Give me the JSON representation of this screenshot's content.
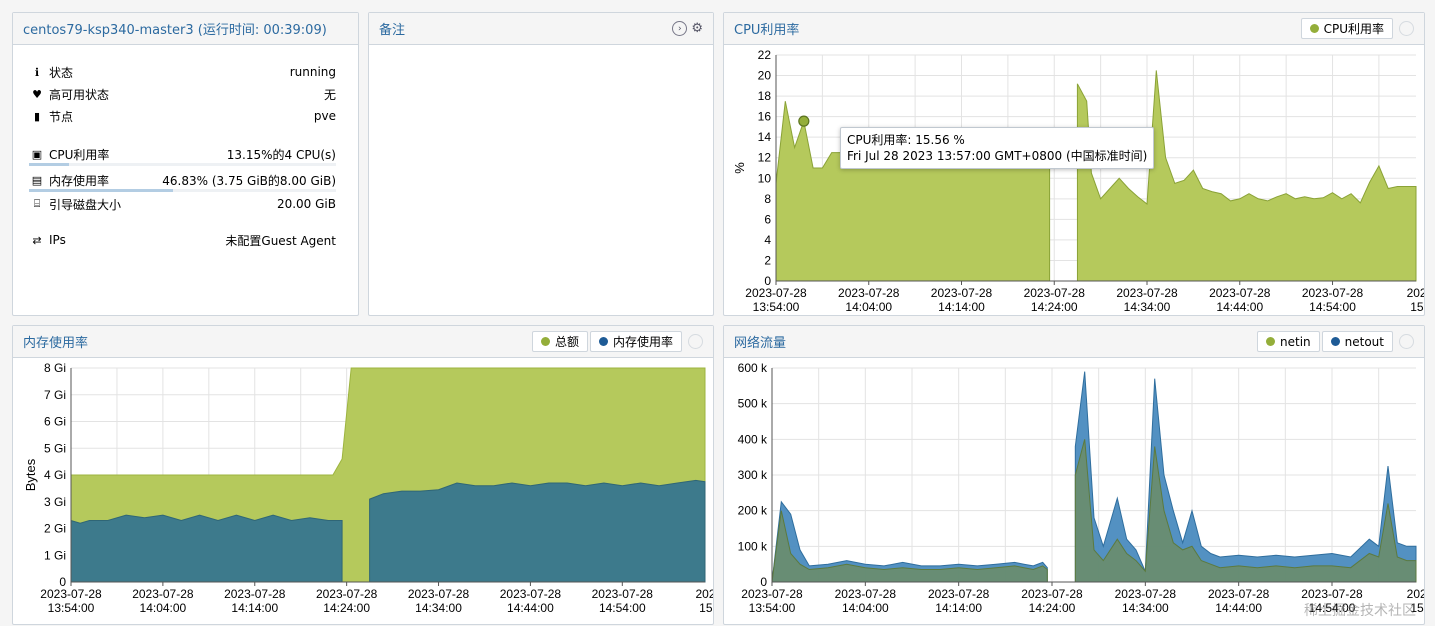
{
  "status_panel": {
    "title": "centos79-ksp340-master3 (运行时间: 00:39:09)",
    "rows": [
      {
        "label": "状态",
        "value": "running"
      },
      {
        "label": "高可用状态",
        "value": "无"
      },
      {
        "label": "节点",
        "value": "pve"
      }
    ],
    "metrics": [
      {
        "label": "CPU利用率",
        "value": "13.15%的4 CPU(s)",
        "fraction": 0.1315
      },
      {
        "label": "内存使用率",
        "value": "46.83% (3.75 GiB的8.00 GiB)",
        "fraction": 0.4683
      },
      {
        "label": "引导磁盘大小",
        "value": "20.00 GiB"
      }
    ],
    "ips": {
      "label": "IPs",
      "value": "未配置Guest Agent"
    }
  },
  "notes_panel": {
    "title": "备注"
  },
  "cpu_panel": {
    "title": "CPU利用率",
    "legend": [
      "CPU利用率"
    ],
    "tooltip": {
      "line1": "CPU利用率: 15.56 %",
      "line2": "Fri Jul 28 2023 13:57:00 GMT+0800 (中国标准时间)"
    }
  },
  "mem_panel": {
    "title": "内存使用率",
    "legend": [
      "总额",
      "内存使用率"
    ]
  },
  "net_panel": {
    "title": "网络流量",
    "legend": [
      "netin",
      "netout"
    ]
  },
  "colors": {
    "total": "#b5c95c",
    "used": "#3d7a8c",
    "netin": "#94ae3a",
    "netout": "#4a8bbf",
    "accent": "#2c6aa0"
  },
  "watermark": "稀土掘金技术社区",
  "chart_data": [
    {
      "type": "area",
      "title": "CPU利用率",
      "ylabel": "%",
      "ylim": [
        0,
        22
      ],
      "yticks": [
        "0",
        "2",
        "4",
        "6",
        "8",
        "10",
        "12",
        "14",
        "16",
        "18",
        "20",
        "22"
      ],
      "xticks": [
        "2023-07-28\n13:54:00",
        "2023-07-28\n14:04:00",
        "2023-07-28\n14:14:00",
        "2023-07-28\n14:24:00",
        "2023-07-28\n14:34:00",
        "2023-07-28\n14:44:00",
        "2023-07-28\n14:54:00",
        "2023-0\n15:03"
      ],
      "xlim_minutes": [
        0,
        69
      ],
      "series": [
        {
          "name": "CPU利用率",
          "segments": [
            [
              [
                0,
                9.5
              ],
              [
                1,
                17.5
              ],
              [
                2,
                13
              ],
              [
                3,
                15.56
              ],
              [
                4,
                11
              ],
              [
                5,
                11
              ],
              [
                6,
                12.5
              ],
              [
                7,
                12.5
              ],
              [
                8,
                12
              ],
              [
                9,
                12
              ],
              [
                10,
                11.5
              ],
              [
                12,
                11.5
              ],
              [
                15,
                11.5
              ],
              [
                18,
                11.5
              ],
              [
                21,
                11.5
              ],
              [
                24,
                11.5
              ],
              [
                27,
                11.5
              ],
              [
                29.5,
                11.5
              ]
            ],
            [
              [
                32.5,
                19.2
              ],
              [
                33.5,
                17.5
              ],
              [
                34,
                10.5
              ],
              [
                35,
                8
              ],
              [
                36,
                9
              ],
              [
                37,
                10
              ],
              [
                38,
                9
              ],
              [
                39,
                8.2
              ],
              [
                40,
                7.5
              ],
              [
                41,
                20.5
              ],
              [
                42,
                12
              ],
              [
                43,
                9.5
              ],
              [
                44,
                9.8
              ],
              [
                45,
                10.8
              ],
              [
                46,
                9
              ],
              [
                47,
                8.7
              ],
              [
                48,
                8.5
              ],
              [
                49,
                7.8
              ],
              [
                50,
                8
              ],
              [
                51,
                8.5
              ],
              [
                52,
                8
              ],
              [
                53,
                7.8
              ],
              [
                54,
                8.2
              ],
              [
                55,
                8.5
              ],
              [
                56,
                8
              ],
              [
                57,
                8.2
              ],
              [
                58,
                8
              ],
              [
                59,
                8.1
              ],
              [
                60,
                8.6
              ],
              [
                61,
                8
              ],
              [
                62,
                8.5
              ],
              [
                63,
                7.6
              ],
              [
                64,
                9.6
              ],
              [
                65,
                11.2
              ],
              [
                66,
                9
              ],
              [
                67,
                9.2
              ],
              [
                69,
                9.2
              ]
            ]
          ]
        }
      ]
    },
    {
      "type": "area",
      "title": "内存使用率",
      "ylabel": "Bytes",
      "ylim": [
        0,
        8
      ],
      "yticks": [
        "0",
        "1 Gi",
        "2 Gi",
        "3 Gi",
        "4 Gi",
        "5 Gi",
        "6 Gi",
        "7 Gi",
        "8 Gi"
      ],
      "xticks": [
        "2023-07-28\n13:54:00",
        "2023-07-28\n14:04:00",
        "2023-07-28\n14:14:00",
        "2023-07-28\n14:24:00",
        "2023-07-28\n14:34:00",
        "2023-07-28\n14:44:00",
        "2023-07-28\n14:54:00",
        "2023-0\n15:03"
      ],
      "xlim_minutes": [
        0,
        69
      ],
      "series": [
        {
          "name": "总额",
          "points": [
            [
              0,
              4
            ],
            [
              28.5,
              4
            ],
            [
              29.5,
              4.6
            ],
            [
              30.5,
              8
            ],
            [
              69,
              8
            ]
          ]
        },
        {
          "name": "内存使用率",
          "segments": [
            [
              [
                0,
                2.3
              ],
              [
                1,
                2.2
              ],
              [
                2,
                2.3
              ],
              [
                4,
                2.3
              ],
              [
                6,
                2.5
              ],
              [
                8,
                2.4
              ],
              [
                10,
                2.5
              ],
              [
                12,
                2.3
              ],
              [
                14,
                2.5
              ],
              [
                16,
                2.3
              ],
              [
                18,
                2.5
              ],
              [
                20,
                2.3
              ],
              [
                22,
                2.5
              ],
              [
                24,
                2.3
              ],
              [
                26,
                2.4
              ],
              [
                28,
                2.3
              ],
              [
                29.5,
                2.3
              ]
            ],
            [
              [
                32.5,
                3.1
              ],
              [
                34,
                3.3
              ],
              [
                36,
                3.4
              ],
              [
                38,
                3.4
              ],
              [
                40,
                3.45
              ],
              [
                42,
                3.7
              ],
              [
                44,
                3.6
              ],
              [
                46,
                3.6
              ],
              [
                48,
                3.7
              ],
              [
                50,
                3.6
              ],
              [
                52,
                3.7
              ],
              [
                54,
                3.7
              ],
              [
                56,
                3.6
              ],
              [
                58,
                3.7
              ],
              [
                60,
                3.6
              ],
              [
                62,
                3.7
              ],
              [
                64,
                3.6
              ],
              [
                66,
                3.7
              ],
              [
                68,
                3.8
              ],
              [
                69,
                3.75
              ]
            ]
          ]
        }
      ]
    },
    {
      "type": "area",
      "title": "网络流量",
      "ylim": [
        0,
        600000
      ],
      "yticks": [
        "0",
        "100 k",
        "200 k",
        "300 k",
        "400 k",
        "500 k",
        "600 k"
      ],
      "xticks": [
        "2023-07-28\n13:54:00",
        "2023-07-28\n14:04:00",
        "2023-07-28\n14:14:00",
        "2023-07-28\n14:24:00",
        "2023-07-28\n14:34:00",
        "2023-07-28\n14:44:00",
        "2023-07-28\n14:54:00",
        "2023-0\n15:03"
      ],
      "xlim_minutes": [
        0,
        69
      ],
      "series": [
        {
          "name": "netout",
          "segments": [
            [
              [
                0,
                0
              ],
              [
                1,
                225000
              ],
              [
                2,
                190000
              ],
              [
                3,
                90000
              ],
              [
                4,
                45000
              ],
              [
                6,
                50000
              ],
              [
                8,
                60000
              ],
              [
                10,
                50000
              ],
              [
                12,
                45000
              ],
              [
                14,
                55000
              ],
              [
                16,
                45000
              ],
              [
                18,
                45000
              ],
              [
                20,
                50000
              ],
              [
                22,
                45000
              ],
              [
                24,
                50000
              ],
              [
                26,
                55000
              ],
              [
                27,
                50000
              ],
              [
                28,
                45000
              ],
              [
                29,
                55000
              ],
              [
                29.5,
                40000
              ]
            ],
            [
              [
                32.5,
                380000
              ],
              [
                33.5,
                590000
              ],
              [
                34.5,
                180000
              ],
              [
                35.5,
                100000
              ],
              [
                37,
                235000
              ],
              [
                38,
                120000
              ],
              [
                39,
                90000
              ],
              [
                40,
                30000
              ],
              [
                41,
                570000
              ],
              [
                42,
                300000
              ],
              [
                43,
                200000
              ],
              [
                44,
                110000
              ],
              [
                45,
                200000
              ],
              [
                46,
                100000
              ],
              [
                47,
                80000
              ],
              [
                48,
                70000
              ],
              [
                50,
                75000
              ],
              [
                52,
                70000
              ],
              [
                54,
                75000
              ],
              [
                56,
                70000
              ],
              [
                58,
                75000
              ],
              [
                60,
                80000
              ],
              [
                62,
                70000
              ],
              [
                64,
                120000
              ],
              [
                65,
                100000
              ],
              [
                66,
                325000
              ],
              [
                67,
                110000
              ],
              [
                68,
                100000
              ],
              [
                69,
                100000
              ]
            ]
          ]
        },
        {
          "name": "netin",
          "segments": [
            [
              [
                0,
                0
              ],
              [
                1,
                200000
              ],
              [
                2,
                80000
              ],
              [
                3,
                50000
              ],
              [
                4,
                35000
              ],
              [
                6,
                40000
              ],
              [
                8,
                50000
              ],
              [
                10,
                40000
              ],
              [
                12,
                35000
              ],
              [
                14,
                40000
              ],
              [
                16,
                35000
              ],
              [
                18,
                35000
              ],
              [
                20,
                40000
              ],
              [
                22,
                35000
              ],
              [
                24,
                40000
              ],
              [
                26,
                45000
              ],
              [
                27,
                40000
              ],
              [
                28,
                35000
              ],
              [
                29,
                45000
              ],
              [
                29.5,
                35000
              ]
            ],
            [
              [
                32.5,
                300000
              ],
              [
                33.5,
                400000
              ],
              [
                34.5,
                90000
              ],
              [
                35.5,
                60000
              ],
              [
                37,
                120000
              ],
              [
                38,
                80000
              ],
              [
                39,
                60000
              ],
              [
                40,
                30000
              ],
              [
                41,
                380000
              ],
              [
                42,
                200000
              ],
              [
                43,
                110000
              ],
              [
                44,
                90000
              ],
              [
                45,
                100000
              ],
              [
                46,
                60000
              ],
              [
                47,
                50000
              ],
              [
                48,
                40000
              ],
              [
                50,
                45000
              ],
              [
                52,
                40000
              ],
              [
                54,
                45000
              ],
              [
                56,
                40000
              ],
              [
                58,
                45000
              ],
              [
                60,
                45000
              ],
              [
                62,
                40000
              ],
              [
                64,
                80000
              ],
              [
                65,
                70000
              ],
              [
                66,
                220000
              ],
              [
                67,
                70000
              ],
              [
                68,
                60000
              ],
              [
                69,
                60000
              ]
            ]
          ]
        }
      ]
    }
  ]
}
